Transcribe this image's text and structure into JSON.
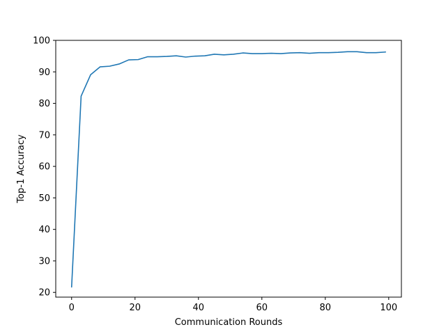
{
  "chart_data": {
    "type": "line",
    "title": "",
    "xlabel": "Communication Rounds",
    "ylabel": "Top-1 Accuracy",
    "xlim": [
      -5,
      104
    ],
    "ylim": [
      18.5,
      100
    ],
    "xticks": [
      0,
      20,
      40,
      60,
      80,
      100
    ],
    "yticks": [
      20,
      30,
      40,
      50,
      60,
      70,
      80,
      90,
      100
    ],
    "grid": false,
    "legend": "none",
    "series": [
      {
        "color": "#1f77b4",
        "x": [
          0,
          3,
          6,
          9,
          12,
          15,
          18,
          21,
          24,
          27,
          30,
          33,
          36,
          39,
          42,
          45,
          48,
          51,
          54,
          57,
          60,
          63,
          66,
          69,
          72,
          75,
          78,
          81,
          84,
          87,
          90,
          93,
          96,
          99
        ],
        "y": [
          21.7,
          82.3,
          89.1,
          91.6,
          91.8,
          92.5,
          93.8,
          93.9,
          94.8,
          94.8,
          94.9,
          95.1,
          94.7,
          95.0,
          95.1,
          95.6,
          95.4,
          95.6,
          96.0,
          95.8,
          95.8,
          95.9,
          95.8,
          96.0,
          96.1,
          95.9,
          96.1,
          96.1,
          96.2,
          96.4,
          96.4,
          96.1,
          96.1,
          96.3
        ]
      }
    ]
  }
}
